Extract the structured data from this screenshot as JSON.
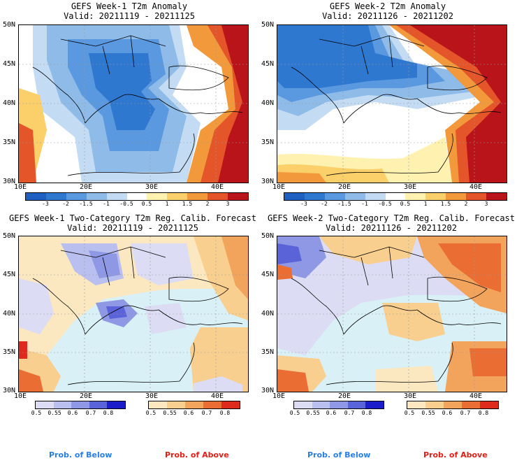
{
  "panels": {
    "p1": {
      "title1": "GEFS Week-1 T2m Anomaly",
      "title2": "Valid: 20211119 - 20211125"
    },
    "p2": {
      "title1": "GEFS Week-2 T2m Anomaly",
      "title2": "Valid: 20211126 - 20211202"
    },
    "p3": {
      "title1": "GEFS Week-1 Two-Category T2m Reg. Calib. Forecast",
      "title2": "Valid: 20211119 - 20211125"
    },
    "p4": {
      "title1": "GEFS Week-2 Two-Category T2m Reg. Calib. Forecast",
      "title2": "Valid: 20211126 - 20211202"
    }
  },
  "axes": {
    "lat": [
      "50N",
      "45N",
      "40N",
      "35N",
      "30N"
    ],
    "lon": [
      "10E",
      "20E",
      "30E",
      "40E"
    ]
  },
  "anomaly_colorbar": {
    "ticks": [
      "-3",
      "-2",
      "-1.5",
      "-1",
      "-0.5",
      "0.5",
      "1",
      "1.5",
      "2",
      "3"
    ],
    "colors": [
      "#1f5fbf",
      "#2f78d0",
      "#5a98e0",
      "#8fbbe9",
      "#c4dcf3",
      "#ffffff",
      "#fff2b0",
      "#fbcf6a",
      "#f29a3b",
      "#e4552a",
      "#b8141a"
    ]
  },
  "prob_below": {
    "ticks": [
      "0.5",
      "0.55",
      "0.6",
      "0.7",
      "0.8"
    ],
    "colors": [
      "#dcdcf4",
      "#b9bfee",
      "#8e98e4",
      "#5b63d9",
      "#1d1ccb"
    ],
    "label": "Prob. of Below"
  },
  "prob_above": {
    "ticks": [
      "0.5",
      "0.55",
      "0.6",
      "0.7",
      "0.8"
    ],
    "colors": [
      "#fbe8c0",
      "#f8cf8e",
      "#f2a35c",
      "#ea6d34",
      "#df2a1e"
    ],
    "label": "Prob. of Above"
  },
  "colors": {
    "sea_light": "#d9f1f6",
    "below_label": "#2a7de1",
    "above_label": "#e02018"
  }
}
